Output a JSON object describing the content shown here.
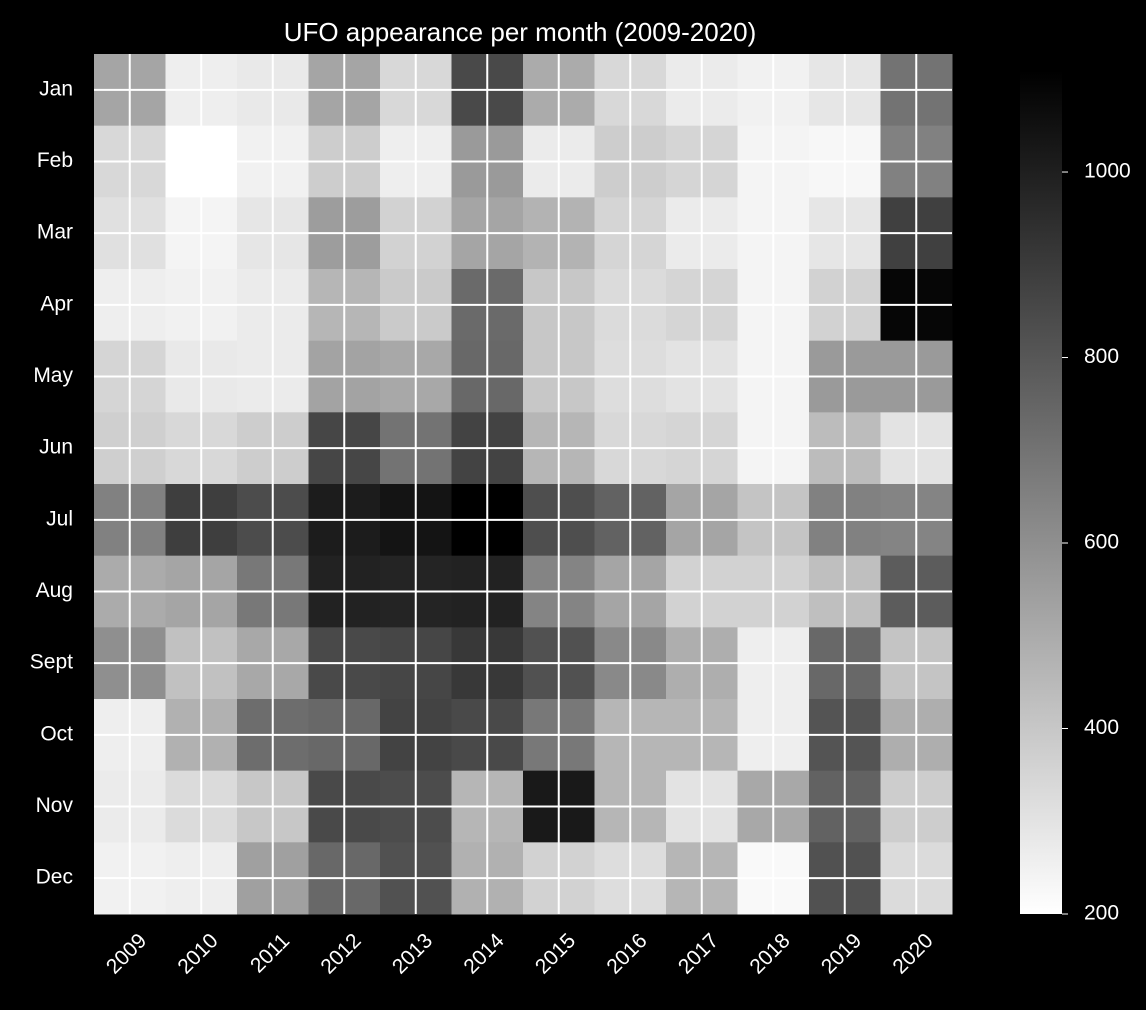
{
  "chart_data": {
    "type": "heatmap",
    "title": "UFO appearance per month (2009-2020)",
    "x": [
      "2009",
      "2010",
      "2011",
      "2012",
      "2013",
      "2014",
      "2015",
      "2016",
      "2017",
      "2018",
      "2019",
      "2020"
    ],
    "y": [
      "Jan",
      "Feb",
      "Mar",
      "Apr",
      "May",
      "Jun",
      "Jul",
      "Aug",
      "Sept",
      "Oct",
      "Nov",
      "Dec"
    ],
    "colormap": "gray_r",
    "vmin": 200,
    "vmax": 1110,
    "colorbar_ticks": [
      "200",
      "400",
      "600",
      "800",
      "1000"
    ],
    "colorbar_tick_values": [
      200,
      400,
      600,
      800,
      1000
    ],
    "values": [
      [
        520,
        260,
        280,
        520,
        340,
        850,
        500,
        340,
        270,
        250,
        290,
        700
      ],
      [
        340,
        200,
        250,
        380,
        260,
        560,
        270,
        380,
        350,
        240,
        230,
        650
      ],
      [
        310,
        240,
        290,
        550,
        360,
        520,
        470,
        350,
        270,
        240,
        290,
        880
      ],
      [
        260,
        250,
        270,
        460,
        390,
        730,
        400,
        330,
        350,
        240,
        360,
        1090
      ],
      [
        350,
        280,
        270,
        530,
        510,
        740,
        400,
        320,
        300,
        240,
        560,
        560
      ],
      [
        370,
        340,
        380,
        860,
        700,
        870,
        460,
        340,
        350,
        240,
        440,
        300
      ],
      [
        650,
        890,
        840,
        1010,
        1040,
        1110,
        830,
        760,
        520,
        410,
        650,
        640
      ],
      [
        500,
        520,
        680,
        990,
        980,
        990,
        640,
        520,
        360,
        360,
        430,
        780
      ],
      [
        600,
        420,
        510,
        850,
        860,
        910,
        820,
        620,
        490,
        260,
        740,
        410
      ],
      [
        260,
        480,
        720,
        740,
        870,
        850,
        680,
        460,
        460,
        260,
        810,
        490
      ],
      [
        270,
        330,
        400,
        850,
        840,
        460,
        1020,
        460,
        300,
        510,
        760,
        380
      ],
      [
        250,
        260,
        540,
        740,
        820,
        480,
        360,
        320,
        460,
        220,
        820,
        330
      ]
    ]
  }
}
